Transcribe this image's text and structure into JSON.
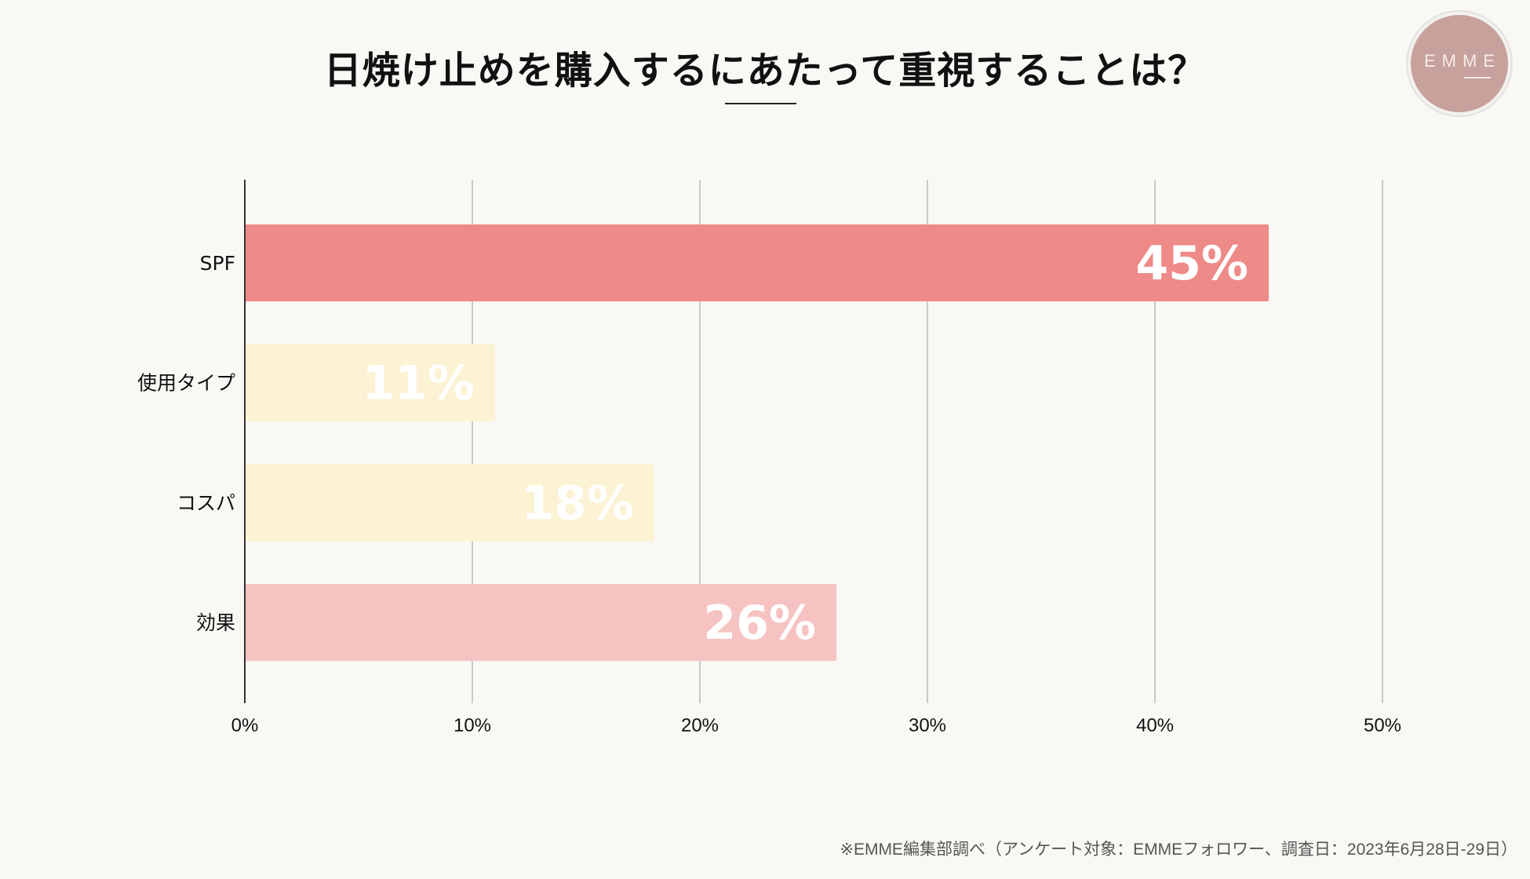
{
  "title": "日焼け止めを購入するにあたって重視することは？",
  "logo": {
    "text": "EMME",
    "color": "#c7a19c"
  },
  "footer": "※EMME編集部調べ（アンケート対象：EMMEフォロワー、調査日：2023年6月28日-29日）",
  "chart_data": {
    "type": "bar",
    "orientation": "horizontal",
    "categories": [
      "SPF",
      "使用タイプ",
      "コスパ",
      "効果"
    ],
    "values": [
      45,
      11,
      18,
      26
    ],
    "value_labels": [
      "45%",
      "11%",
      "18%",
      "26%"
    ],
    "colors": [
      "#ee8a87",
      "#fcf2d4",
      "#fcf2d4",
      "#f6c3c2"
    ],
    "xlim": [
      0,
      50
    ],
    "x_ticks": [
      "0%",
      "10%",
      "20%",
      "30%",
      "40%",
      "50%"
    ],
    "grid": true,
    "xlabel": "",
    "ylabel": ""
  }
}
